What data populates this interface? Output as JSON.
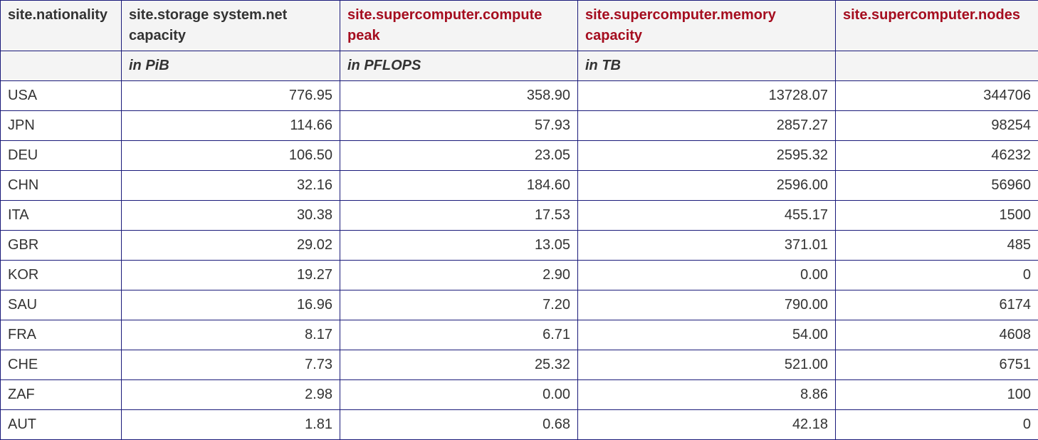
{
  "table": {
    "headers": [
      "site.nationality",
      "site.storage system.net capacity",
      "site.supercomputer.compute peak",
      "site.supercomputer.memory capacity",
      "site.supercomputer.nodes"
    ],
    "units": [
      "",
      "in PiB",
      "in PFLOPS",
      "in TB",
      ""
    ],
    "header_colors": {
      "default": "#333333",
      "highlight": "#a50d1f"
    },
    "rows": [
      [
        "USA",
        "776.95",
        "358.90",
        "13728.07",
        "344706"
      ],
      [
        "JPN",
        "114.66",
        "57.93",
        "2857.27",
        "98254"
      ],
      [
        "DEU",
        "106.50",
        "23.05",
        "2595.32",
        "46232"
      ],
      [
        "CHN",
        "32.16",
        "184.60",
        "2596.00",
        "56960"
      ],
      [
        "ITA",
        "30.38",
        "17.53",
        "455.17",
        "1500"
      ],
      [
        "GBR",
        "29.02",
        "13.05",
        "371.01",
        "485"
      ],
      [
        "KOR",
        "19.27",
        "2.90",
        "0.00",
        "0"
      ],
      [
        "SAU",
        "16.96",
        "7.20",
        "790.00",
        "6174"
      ],
      [
        "FRA",
        "8.17",
        "6.71",
        "54.00",
        "4608"
      ],
      [
        "CHE",
        "7.73",
        "25.32",
        "521.00",
        "6751"
      ],
      [
        "ZAF",
        "2.98",
        "0.00",
        "8.86",
        "100"
      ],
      [
        "AUT",
        "1.81",
        "0.68",
        "42.18",
        "0"
      ]
    ]
  }
}
